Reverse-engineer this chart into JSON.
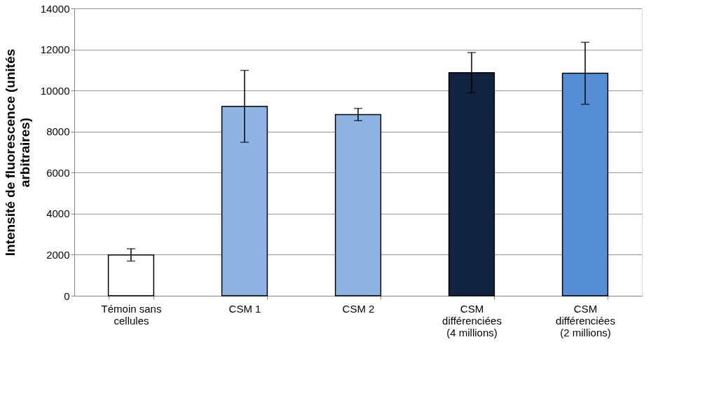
{
  "chart_data": {
    "type": "bar",
    "ylabel": "Intensité de fluorescence (unités arbitraires)",
    "categories": [
      "Témoin sans cellules",
      "CSM 1",
      "CSM 2",
      "CSM différenciées (4 millions)",
      "CSM différenciées (2 millions)"
    ],
    "values": [
      1990,
      9230,
      8830,
      10870,
      10840
    ],
    "errors": [
      300,
      1750,
      300,
      980,
      1510
    ],
    "colors": [
      "#ffffff",
      "#8eb4e3",
      "#8eb4e3",
      "#10243f",
      "#558ed5"
    ],
    "ylim": [
      0,
      14000
    ],
    "yticks": [
      0,
      2000,
      4000,
      6000,
      8000,
      10000,
      12000,
      14000
    ],
    "grid": "y"
  }
}
